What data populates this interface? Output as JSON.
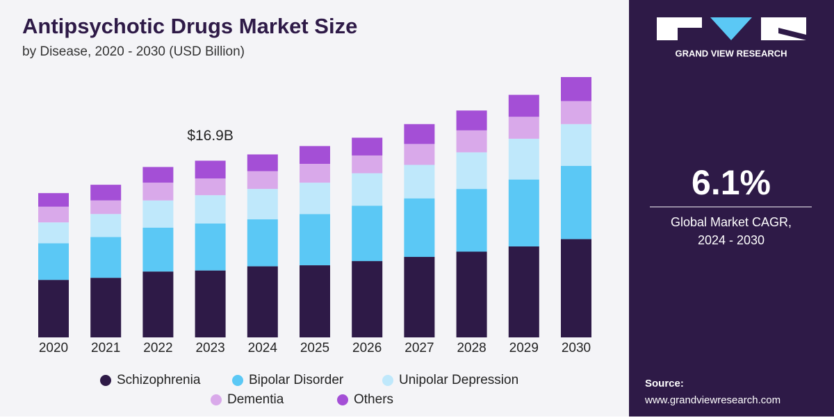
{
  "chart_data": {
    "type": "stacked_bar",
    "title": "Antipsychotic Drugs Market Size",
    "subtitle": "by Disease, 2020 - 2030 (USD Billion)",
    "categories": [
      "2020",
      "2021",
      "2022",
      "2023",
      "2024",
      "2025",
      "2026",
      "2027",
      "2028",
      "2029",
      "2030"
    ],
    "series": [
      {
        "name": "Schizophrenia",
        "color": "#2e1a47",
        "values": [
          5.5,
          5.7,
          6.3,
          6.4,
          6.8,
          6.9,
          7.3,
          7.7,
          8.2,
          8.7,
          9.4
        ]
      },
      {
        "name": "Bipolar Disorder",
        "color": "#5bc8f5",
        "values": [
          3.5,
          3.9,
          4.2,
          4.5,
          4.5,
          4.9,
          5.3,
          5.6,
          6.0,
          6.4,
          7.0
        ]
      },
      {
        "name": "Unipolar Depression",
        "color": "#bfe8fb",
        "values": [
          2.0,
          2.2,
          2.6,
          2.7,
          2.9,
          3.0,
          3.1,
          3.2,
          3.5,
          3.9,
          4.0
        ]
      },
      {
        "name": "Dementia",
        "color": "#d9a9ea",
        "values": [
          1.5,
          1.3,
          1.7,
          1.6,
          1.7,
          1.8,
          1.7,
          2.0,
          2.1,
          2.1,
          2.2
        ]
      },
      {
        "name": "Others",
        "color": "#a44fd6",
        "values": [
          1.3,
          1.5,
          1.5,
          1.7,
          1.6,
          1.7,
          1.7,
          1.9,
          1.9,
          2.1,
          2.3
        ]
      }
    ],
    "annotation": {
      "category": "2023",
      "value": 16.9,
      "label": "$16.9B"
    }
  },
  "sidebar": {
    "brand": "GRAND VIEW RESEARCH",
    "cagr": "6.1%",
    "cagr_caption_line1": "Global Market CAGR,",
    "cagr_caption_line2": "2024 - 2030",
    "source_label": "Source:",
    "source_url": "www.grandviewresearch.com"
  }
}
